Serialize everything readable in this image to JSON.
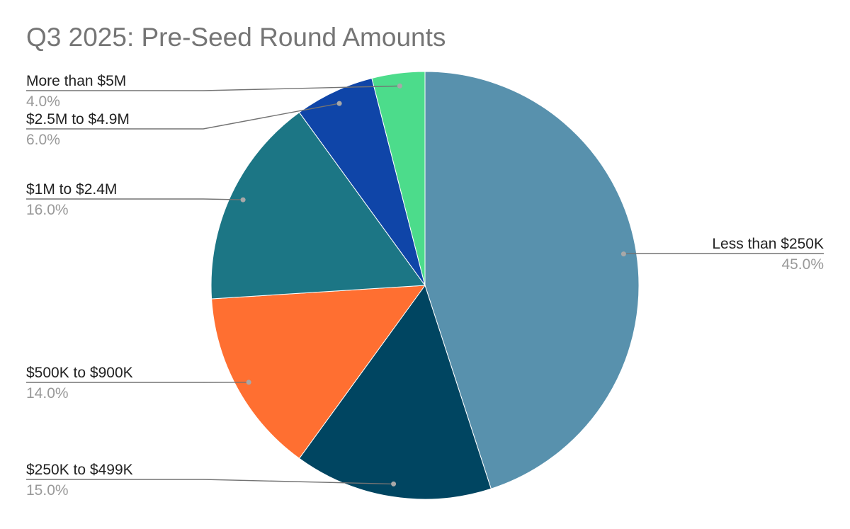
{
  "chart_data": {
    "type": "pie",
    "title": "Q3 2025: Pre-Seed Round Amounts",
    "slices": [
      {
        "label": "Less than $250K",
        "value": 45.0,
        "display": "45.0%",
        "color": "#5891AD"
      },
      {
        "label": "$250K to $499K",
        "value": 15.0,
        "display": "15.0%",
        "color": "#004561"
      },
      {
        "label": "$500K to $900K",
        "value": 14.0,
        "display": "14.0%",
        "color": "#FF6F31"
      },
      {
        "label": "$1M to $2.4M",
        "value": 16.0,
        "display": "16.0%",
        "color": "#1C7685"
      },
      {
        "label": "$2.5M to $4.9M",
        "value": 6.0,
        "display": "6.0%",
        "color": "#0F45A8"
      },
      {
        "label": "More than $5M",
        "value": 4.0,
        "display": "4.0%",
        "color": "#4CDC8B"
      }
    ],
    "start_angle": "12 o'clock",
    "direction": "clockwise",
    "legend": "none",
    "label_color": "#222222",
    "value_color": "#999999",
    "leader_color": "#737373"
  }
}
